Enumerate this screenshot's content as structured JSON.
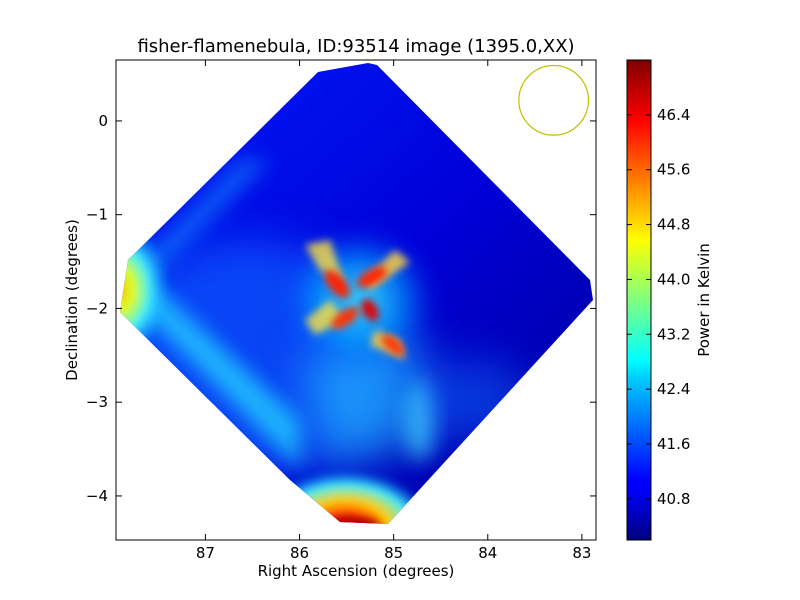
{
  "chart_data": {
    "type": "heatmap",
    "title": "fisher-flamenebula, ID:93514 image (1395.0,XX)",
    "xlabel": "Right Ascension (degrees)",
    "ylabel": "Declination (degrees)",
    "xlim": [
      87.95,
      82.85
    ],
    "ylim": [
      -4.47,
      0.65
    ],
    "x_ticks": [
      87,
      86,
      85,
      84,
      83
    ],
    "y_ticks": [
      0,
      -1,
      -2,
      -3,
      -4
    ],
    "x_tick_labels": [
      "87",
      "86",
      "85",
      "84",
      "83"
    ],
    "y_tick_labels": [
      "0",
      "−1",
      "−2",
      "−3",
      "−4"
    ],
    "colorbar": {
      "label": "Power in Kelvin",
      "range": [
        40.2,
        47.2
      ],
      "ticks": [
        40.8,
        41.6,
        42.4,
        43.2,
        44.0,
        44.8,
        45.6,
        46.4
      ],
      "tick_labels": [
        "40.8",
        "41.6",
        "42.4",
        "43.2",
        "44.0",
        "44.8",
        "45.6",
        "46.4"
      ],
      "colormap": "jet"
    },
    "beam_circle": {
      "ra": 83.3,
      "dec": 0.22,
      "radius_deg": 0.37,
      "color": "#bfbf00"
    },
    "footprint": {
      "shape": "diamond",
      "vertices": [
        [
          85.5,
          0.65
        ],
        [
          82.85,
          -1.95
        ],
        [
          85.5,
          -4.45
        ],
        [
          87.9,
          -1.95
        ]
      ]
    },
    "features": [
      {
        "name": "center cross",
        "ra": 85.4,
        "dec": -2.0,
        "value": 46.4
      },
      {
        "name": "south edge",
        "ra": 85.4,
        "dec": -4.35,
        "value": 46.8
      },
      {
        "name": "west edge",
        "ra": 87.8,
        "dec": -1.85,
        "value": 45.2
      },
      {
        "name": "background",
        "value": 40.6
      }
    ]
  }
}
